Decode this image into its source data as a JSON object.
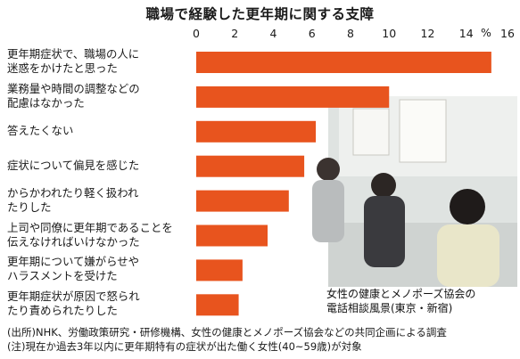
{
  "title": "職場で経験した更年期に関する支障",
  "unit_label": "%",
  "photo_caption": [
    "女性の健康とメノポーズ協会の",
    "電話相談風景(東京・新宿)"
  ],
  "footnotes": [
    "(出所)NHK、労働政策研究・研修機構、女性の健康とメノポーズ協会などの共同企画による調査",
    "(注)現在か過去3年以内に更年期特有の症状が出た働く女性(40~59歳)が対象"
  ],
  "colors": {
    "bar": "#e8541e",
    "photo_bg": "#dfe3e1"
  },
  "chart_data": {
    "type": "bar",
    "orientation": "horizontal",
    "title": "職場で経験した更年期に関する支障",
    "xlabel": "%",
    "xlim": [
      0,
      16
    ],
    "ticks": [
      0,
      2,
      4,
      6,
      8,
      10,
      12,
      14,
      16
    ],
    "categories": [
      [
        "更年期症状で、職場の人に",
        "迷惑をかけたと思った"
      ],
      [
        "業務量や時間の調整などの",
        "配慮はなかった"
      ],
      [
        "答えたくない"
      ],
      [
        "症状について偏見を感じた"
      ],
      [
        "からかわれたり軽く扱われ",
        "たりした"
      ],
      [
        "上司や同僚に更年期であることを",
        "伝えなければいけなかった"
      ],
      [
        "更年期について嫌がらせや",
        "ハラスメントを受けた"
      ],
      [
        "更年期症状が原因で怒られ",
        "たり責められたりした"
      ]
    ],
    "values": [
      15.3,
      10.0,
      6.2,
      5.6,
      4.8,
      3.7,
      2.4,
      2.2
    ]
  }
}
